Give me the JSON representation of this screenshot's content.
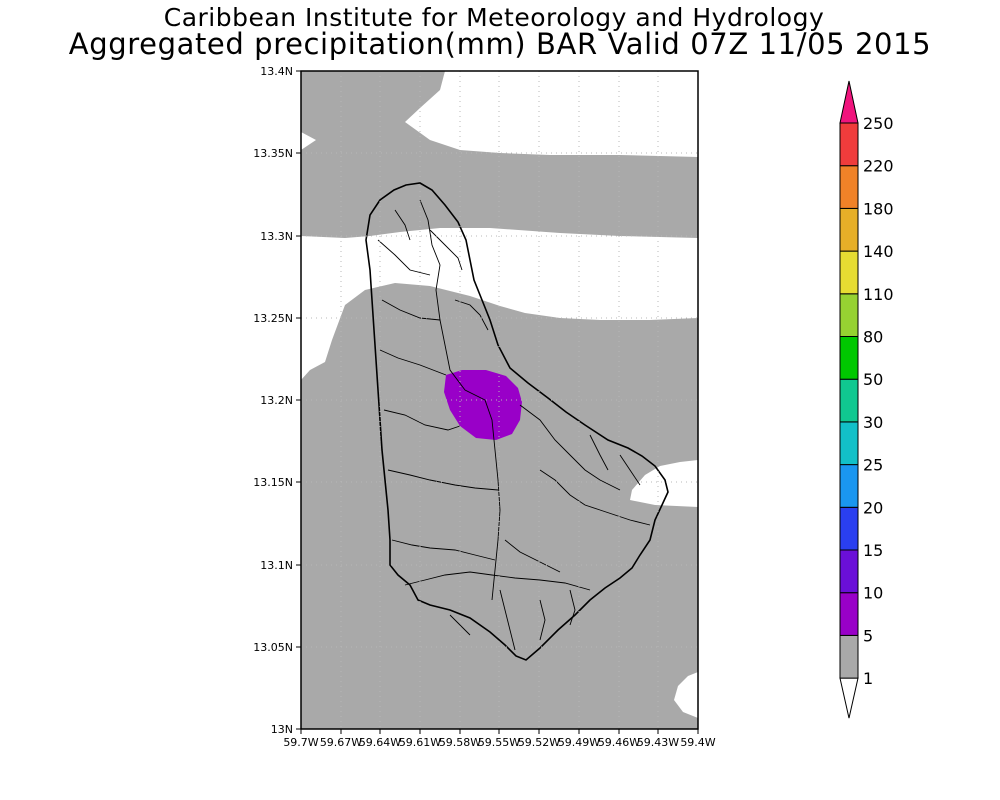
{
  "header": {
    "title": "Caribbean Institute for Meteorology and Hydrology",
    "subtitle": "Aggregated precipitation(mm) BAR Valid 07Z 11/05 2015"
  },
  "map": {
    "lat_ticks": [
      "13.4N",
      "13.35N",
      "13.3N",
      "13.25N",
      "13.2N",
      "13.15N",
      "13.1N",
      "13.05N",
      "13N"
    ],
    "lon_ticks": [
      "59.7W",
      "59.67W",
      "59.64W",
      "59.61W",
      "59.58W",
      "59.55W",
      "59.52W",
      "59.49W",
      "59.46W",
      "59.43W",
      "59.4W"
    ],
    "lat_range": [
      13.0,
      13.4
    ],
    "lon_range": [
      -59.7,
      -59.4
    ],
    "grid": true
  },
  "colorbar": {
    "levels": [
      "1",
      "5",
      "10",
      "15",
      "20",
      "25",
      "30",
      "50",
      "80",
      "110",
      "140",
      "180",
      "220",
      "250"
    ],
    "colors": [
      "#ffffff",
      "#a9a9a9",
      "#9900c8",
      "#6a0fd8",
      "#2a3ff0",
      "#1a96f0",
      "#12c0c8",
      "#10c890",
      "#00c800",
      "#96d232",
      "#e6dc32",
      "#e6af28",
      "#f08228",
      "#f03c3c",
      "#f0147d"
    ]
  }
}
